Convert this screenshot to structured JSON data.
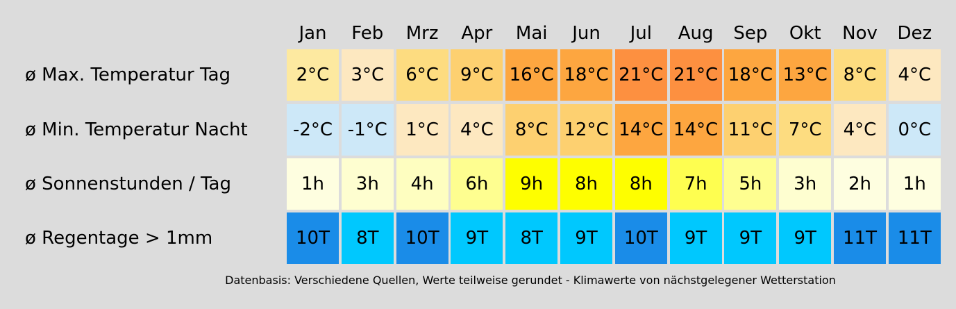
{
  "chart_data": {
    "type": "table",
    "months": [
      "Jan",
      "Feb",
      "Mrz",
      "Apr",
      "Mai",
      "Jun",
      "Jul",
      "Aug",
      "Sep",
      "Okt",
      "Nov",
      "Dez"
    ],
    "rows": [
      {
        "key": "max-temp",
        "label": "ø Max. Temperatur Tag",
        "values": [
          "2°C",
          "3°C",
          "6°C",
          "9°C",
          "16°C",
          "18°C",
          "21°C",
          "21°C",
          "18°C",
          "13°C",
          "8°C",
          "4°C"
        ],
        "colors": [
          "#fde9a0",
          "#fde8c0",
          "#fddc80",
          "#fdd070",
          "#fda640",
          "#fda640",
          "#fd9040",
          "#fd9040",
          "#fda640",
          "#fda640",
          "#fddc80",
          "#fde8c0"
        ]
      },
      {
        "key": "min-temp",
        "label": "ø Min. Temperatur Nacht",
        "values": [
          "-2°C",
          "-1°C",
          "1°C",
          "4°C",
          "8°C",
          "12°C",
          "14°C",
          "14°C",
          "11°C",
          "7°C",
          "4°C",
          "0°C"
        ],
        "colors": [
          "#cde8f8",
          "#cde8f8",
          "#fde8c0",
          "#fde8c0",
          "#fdd070",
          "#fdd070",
          "#fda640",
          "#fda640",
          "#fdd070",
          "#fddc80",
          "#fde8c0",
          "#cde8f8"
        ]
      },
      {
        "key": "sun",
        "label": "ø Sonnenstunden / Tag",
        "values": [
          "1h",
          "3h",
          "4h",
          "6h",
          "9h",
          "8h",
          "8h",
          "7h",
          "5h",
          "3h",
          "2h",
          "1h"
        ],
        "colors": [
          "#fefee0",
          "#fefed0",
          "#fefec0",
          "#fefe90",
          "#fefe00",
          "#fefe00",
          "#fefe00",
          "#fefe50",
          "#fefe90",
          "#fefed0",
          "#fefee0",
          "#fefee0"
        ]
      },
      {
        "key": "rain",
        "label": "ø Regentage > 1mm",
        "values": [
          "10T",
          "8T",
          "10T",
          "9T",
          "8T",
          "9T",
          "10T",
          "9T",
          "9T",
          "9T",
          "11T",
          "11T"
        ],
        "colors": [
          "#1a8ce8",
          "#00c8fe",
          "#1a8ce8",
          "#00c8fe",
          "#00c8fe",
          "#00c8fe",
          "#1a8ce8",
          "#00c8fe",
          "#00c8fe",
          "#00c8fe",
          "#1a8ce8",
          "#1a8ce8"
        ]
      }
    ],
    "footnote": "Datenbasis: Verschiedene Quellen, Werte teilweise gerundet - Klimawerte von nächstgelegener Wetterstation"
  }
}
